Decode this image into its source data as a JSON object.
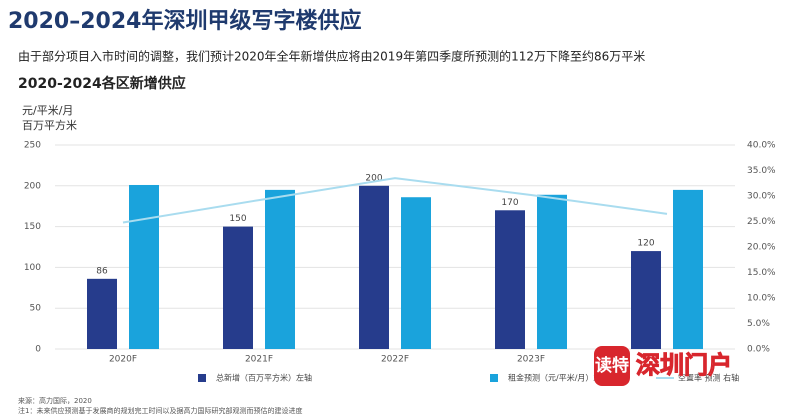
{
  "chart_data": {
    "type": "bar",
    "title": "2020–2024年深圳甲级写字楼供应",
    "subtitle": "由于部分项目入市时间的调整，我们预计2020年全年新增供应将由2019年第四季度所预测的112万下降至约86万平米",
    "chart_title": "2020-2024各区新增供应",
    "y_label_lines": [
      "元/平米/月",
      "百万平方米"
    ],
    "categories": [
      "2020F",
      "2021F",
      "2022F",
      "2023F",
      null
    ],
    "series": [
      {
        "name": "总新增（百万平方米）左轴",
        "color": "#263c8c",
        "values": [
          86,
          150,
          200,
          170,
          120
        ]
      },
      {
        "name": "租金预测（元/平米/月）左轴",
        "color": "#1aa3dc",
        "values": [
          201,
          195,
          186,
          189,
          195
        ]
      },
      {
        "name": "空置率 预测 右轴",
        "color": "#a9dcef",
        "type": "line",
        "axis": "y2",
        "values": [
          24.8,
          29.2,
          33.5,
          30.2,
          26.5
        ]
      }
    ],
    "ylim": [
      0,
      250
    ],
    "yticks": [
      0,
      50,
      100,
      150,
      200,
      250
    ],
    "y2lim": [
      0,
      40
    ],
    "y2ticks": [
      {
        "value": 0,
        "label": "0.0%"
      },
      {
        "value": 5,
        "label": "5.0%"
      },
      {
        "value": 10,
        "label": "10.0%"
      },
      {
        "value": 15,
        "label": "15.0%"
      },
      {
        "value": 20,
        "label": "20.0%"
      },
      {
        "value": 25,
        "label": "25.0%"
      },
      {
        "value": 30,
        "label": "30.0%"
      },
      {
        "value": 35,
        "label": "35.0%"
      },
      {
        "value": 40,
        "label": "40.0%"
      }
    ],
    "grid": true,
    "source": "来源：高力国际，2020",
    "note": "注1：未来供应预测基于发展商的规划完工时间以及据高力国际研究部观测而预估的建设进度",
    "watermark": [
      "读特",
      "深圳门户"
    ]
  }
}
